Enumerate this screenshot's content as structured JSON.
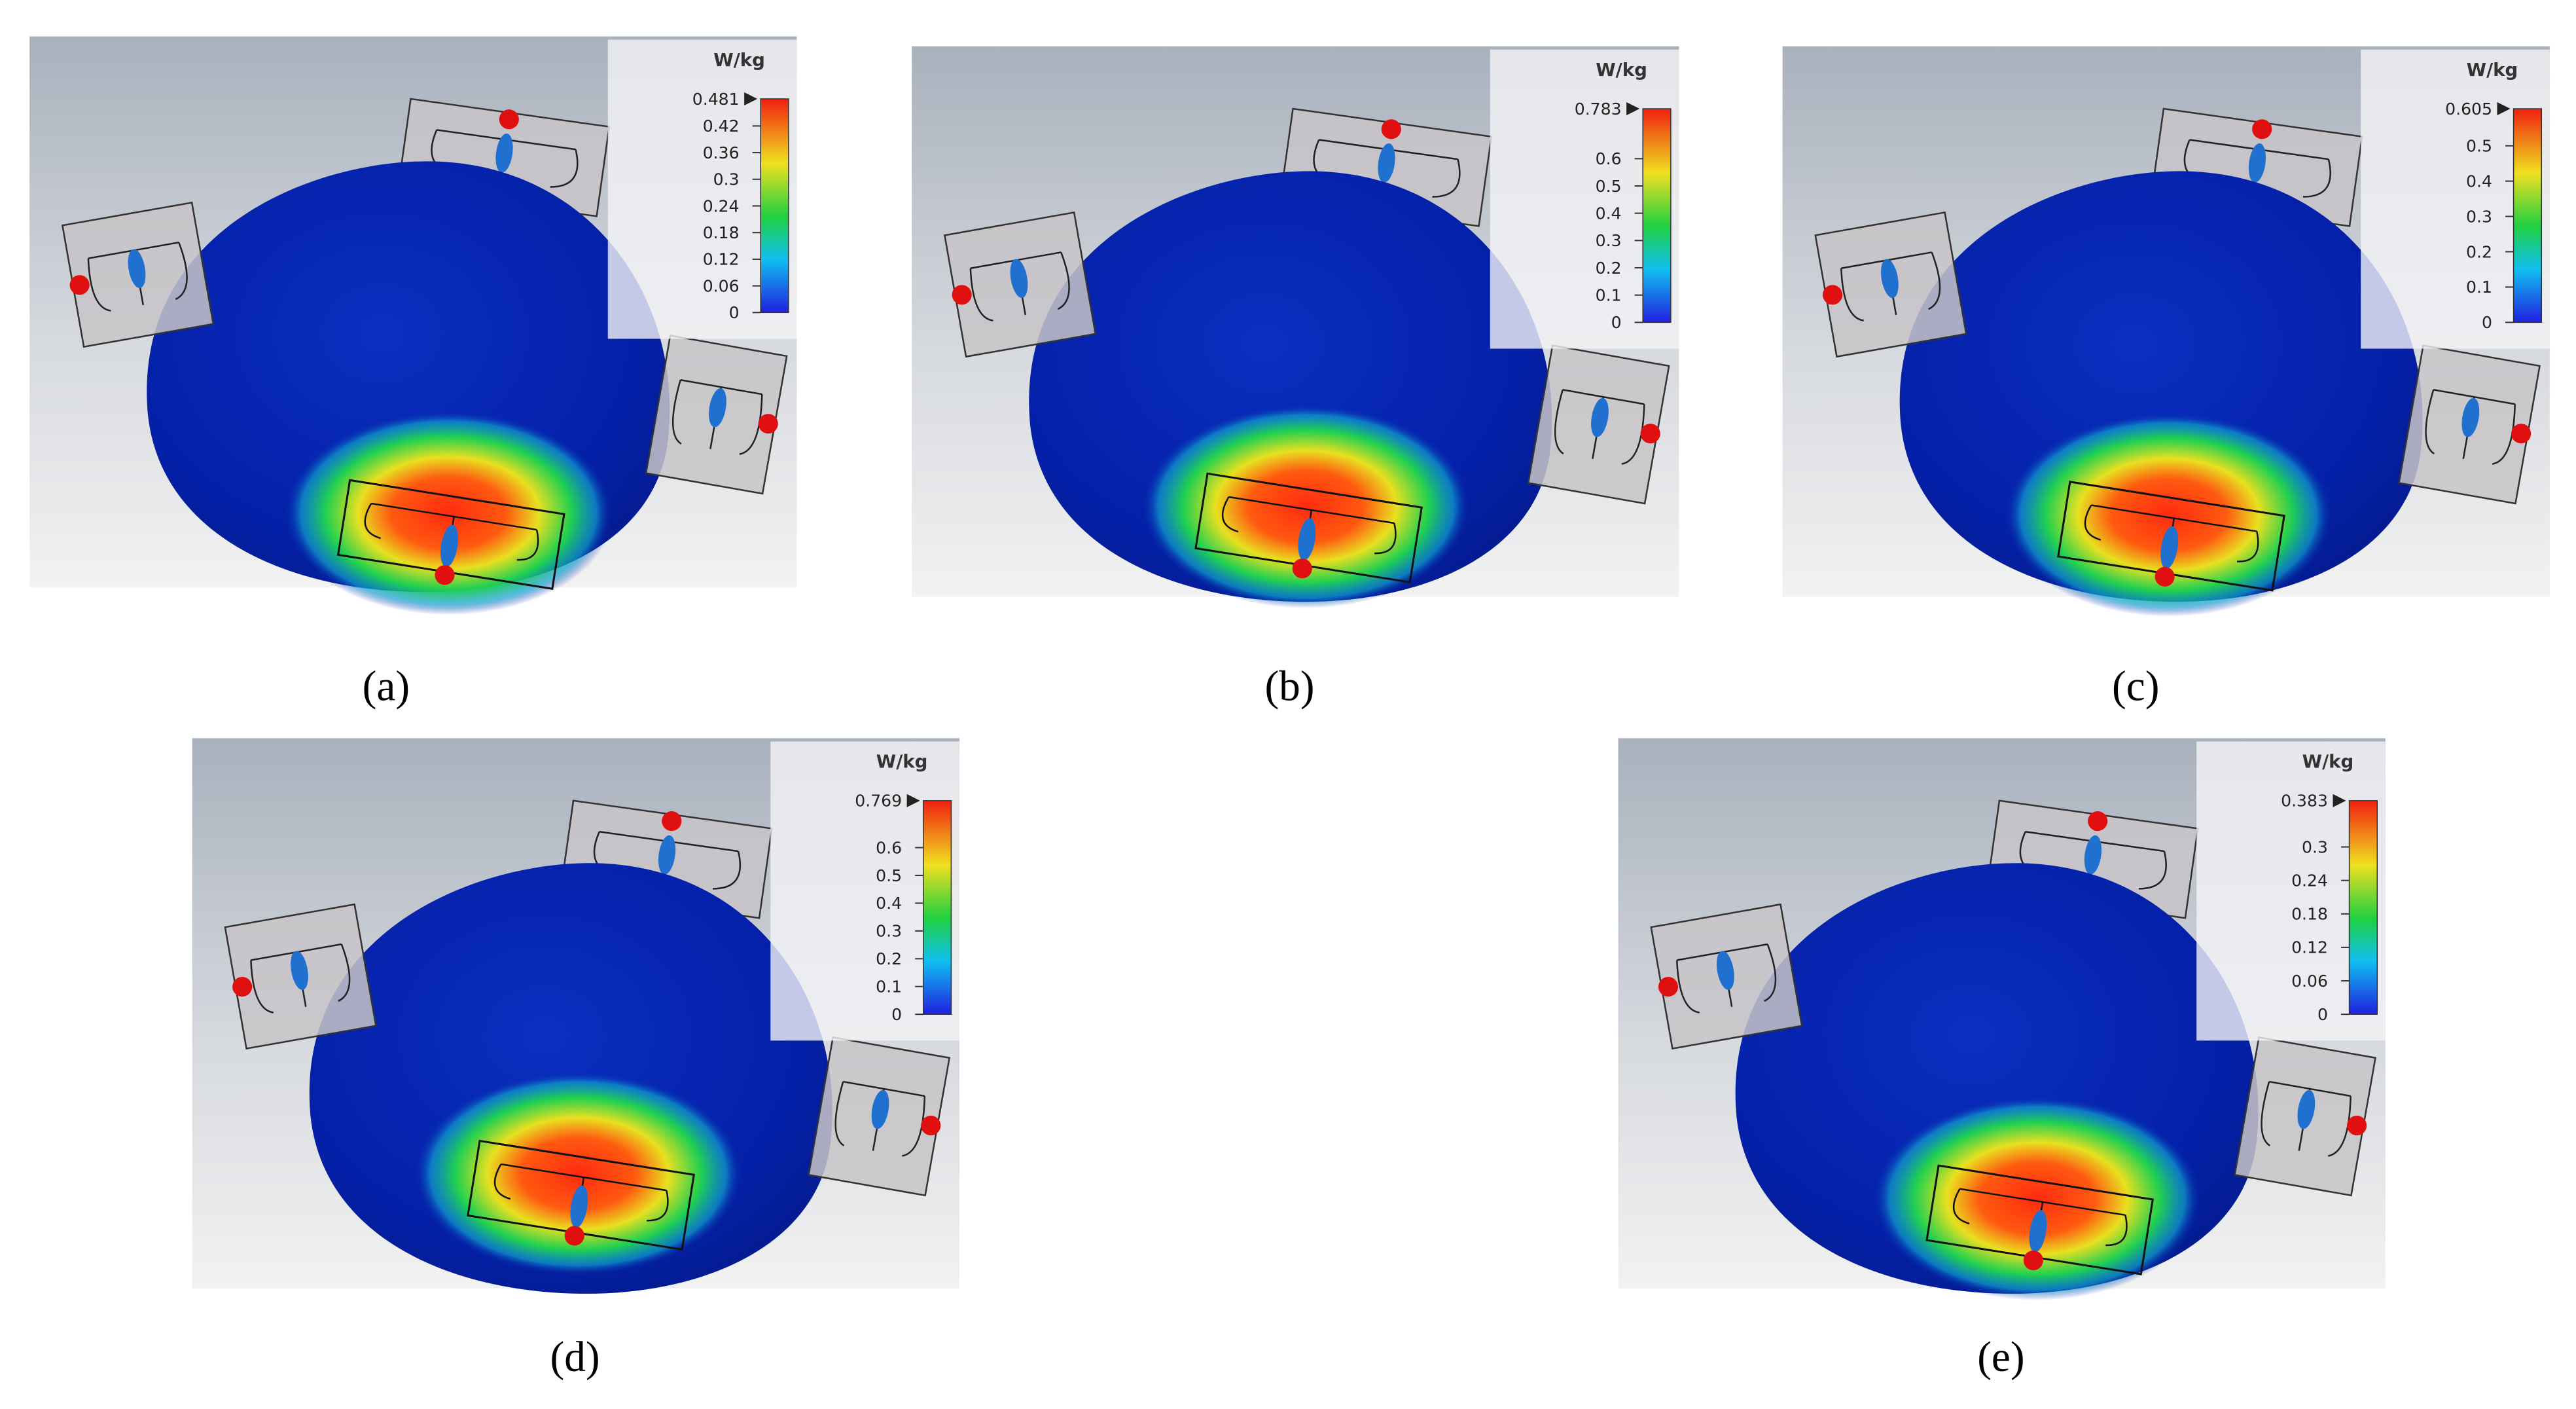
{
  "panels": [
    {
      "caption": "(a)",
      "colorbar": {
        "unit": "W/kg",
        "max": 0.481,
        "ticks": [
          0.42,
          0.36,
          0.3,
          0.24,
          0.18,
          0.12,
          0.06,
          0
        ]
      }
    },
    {
      "caption": "(b)",
      "colorbar": {
        "unit": "W/kg",
        "max": 0.783,
        "ticks": [
          0.6,
          0.5,
          0.4,
          0.3,
          0.2,
          0.1,
          0
        ]
      }
    },
    {
      "caption": "(c)",
      "colorbar": {
        "unit": "W/kg",
        "max": 0.605,
        "ticks": [
          0.5,
          0.4,
          0.3,
          0.2,
          0.1,
          0
        ]
      }
    },
    {
      "caption": "(d)",
      "colorbar": {
        "unit": "W/kg",
        "max": 0.769,
        "ticks": [
          0.6,
          0.5,
          0.4,
          0.3,
          0.2,
          0.1,
          0
        ]
      }
    },
    {
      "caption": "(e)",
      "colorbar": {
        "unit": "W/kg",
        "max": 0.383,
        "ticks": [
          0.3,
          0.24,
          0.18,
          0.12,
          0.06,
          0
        ]
      }
    }
  ]
}
